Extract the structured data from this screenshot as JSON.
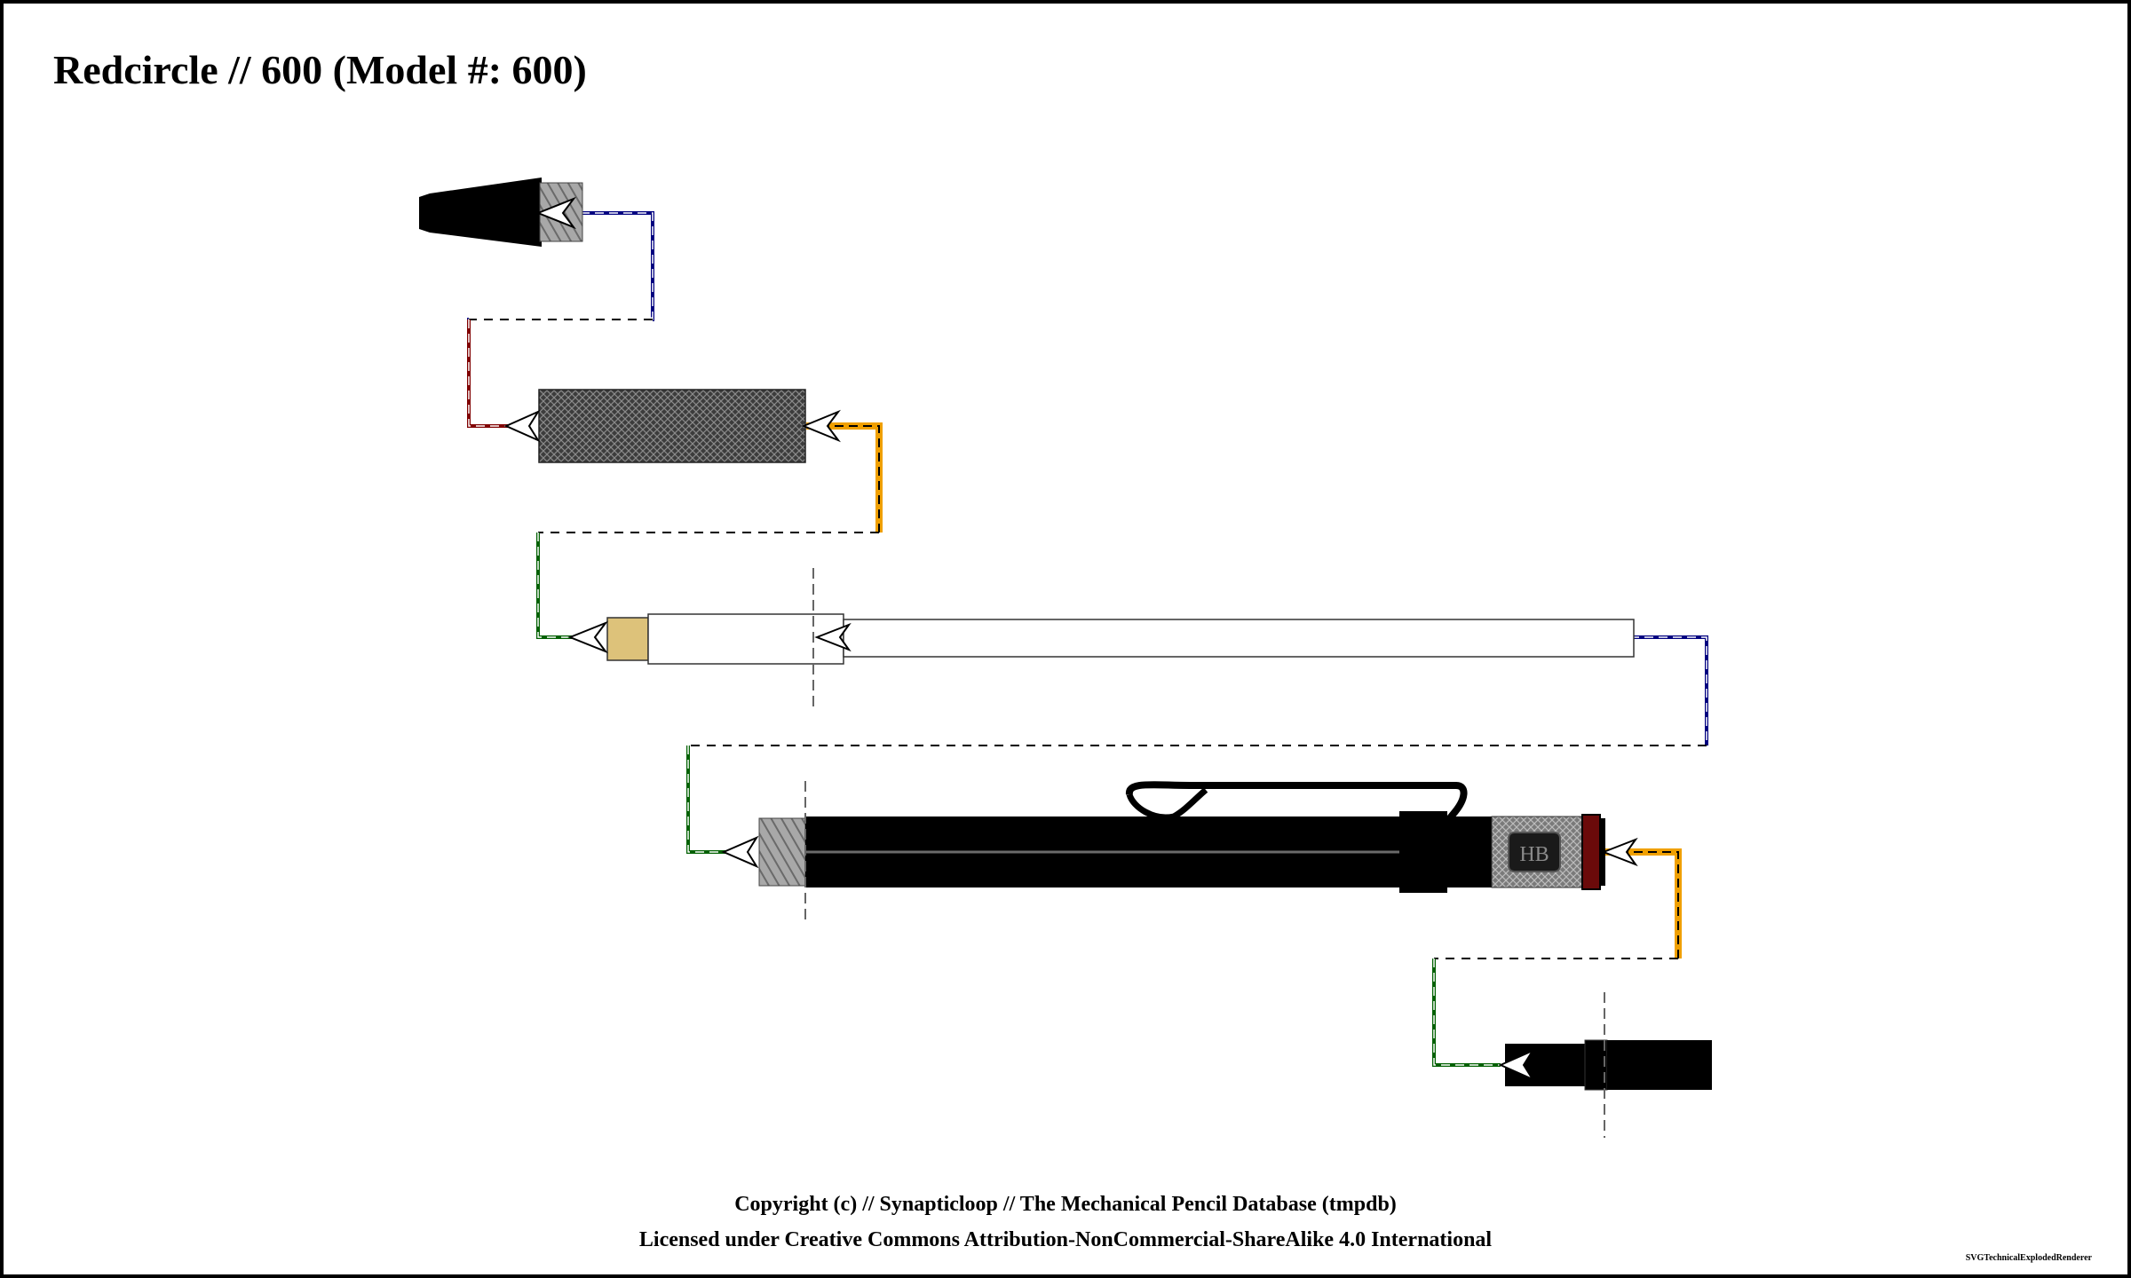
{
  "title": "Redcircle // 600 (Model #: 600)",
  "footer": {
    "copyright": "Copyright (c) // Synapticloop // The Mechanical Pencil Database (tmpdb)",
    "license": "Licensed under Creative Commons Attribution-NonCommercial-ShareAlike 4.0 International",
    "renderer": "SVGTechnicalExplodedRenderer"
  },
  "parts": {
    "body": {
      "grade_label": "HB"
    }
  },
  "colors": {
    "background": "#ffffff",
    "frame": "#000000",
    "body": "#000000",
    "thread": "#a0a0a0",
    "grip": "#4a4a4a",
    "eraser": "#ddc27a",
    "eraser_holder": "#ffffff",
    "ring": "#6b0a0a",
    "connector_blue": "#000080",
    "connector_red": "#800000",
    "connector_orange": "#f0a000",
    "connector_green": "#006000",
    "connector_dash": "#000000"
  }
}
